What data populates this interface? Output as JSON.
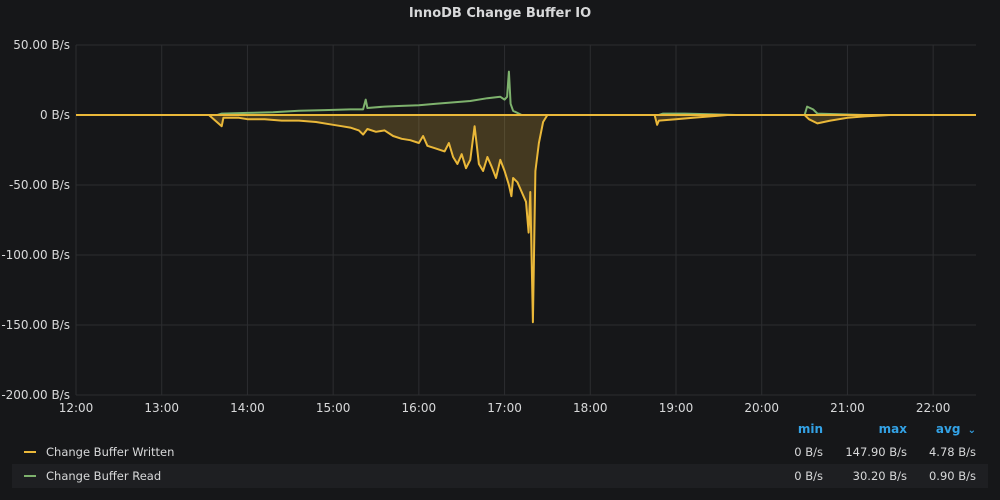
{
  "title": "InnoDB Change Buffer IO",
  "legend": {
    "headers": {
      "min": "min",
      "max": "max",
      "avg": "avg"
    },
    "sort_icon": "chevron-down-icon",
    "rows": [
      {
        "name": "Change Buffer Written",
        "color": "#eab839",
        "min": "0 B/s",
        "max": "147.90 B/s",
        "avg": "4.78 B/s"
      },
      {
        "name": "Change Buffer Read",
        "color": "#7eb26d",
        "min": "0 B/s",
        "max": "30.20 B/s",
        "avg": "0.90 B/s"
      }
    ]
  },
  "chart_data": {
    "type": "line",
    "title": "InnoDB Change Buffer IO",
    "x_ticks": [
      "12:00",
      "13:00",
      "14:00",
      "15:00",
      "16:00",
      "17:00",
      "18:00",
      "19:00",
      "20:00",
      "21:00",
      "22:00"
    ],
    "y_ticks": [
      "50.00 B/s",
      "0 B/s",
      "-50.00 B/s",
      "-100.00 B/s",
      "-150.00 B/s",
      "-200.00 B/s"
    ],
    "y_tick_values": [
      50,
      0,
      -50,
      -100,
      -150,
      -200
    ],
    "ylim": [
      -200,
      50
    ],
    "xlim_hours": [
      12,
      22.5
    ],
    "grid": true,
    "series": [
      {
        "name": "Change Buffer Written",
        "color": "#eab839",
        "fill": true,
        "points": [
          [
            12.0,
            0
          ],
          [
            13.55,
            0
          ],
          [
            13.7,
            -8
          ],
          [
            13.72,
            -2
          ],
          [
            13.9,
            -2
          ],
          [
            14.0,
            -3
          ],
          [
            14.2,
            -3
          ],
          [
            14.4,
            -4
          ],
          [
            14.6,
            -4
          ],
          [
            14.8,
            -5
          ],
          [
            15.0,
            -7
          ],
          [
            15.1,
            -8
          ],
          [
            15.2,
            -9
          ],
          [
            15.3,
            -11
          ],
          [
            15.35,
            -14
          ],
          [
            15.4,
            -10
          ],
          [
            15.5,
            -12
          ],
          [
            15.6,
            -11
          ],
          [
            15.7,
            -15
          ],
          [
            15.8,
            -17
          ],
          [
            15.9,
            -18
          ],
          [
            16.0,
            -20
          ],
          [
            16.05,
            -15
          ],
          [
            16.1,
            -22
          ],
          [
            16.2,
            -24
          ],
          [
            16.3,
            -26
          ],
          [
            16.35,
            -20
          ],
          [
            16.4,
            -30
          ],
          [
            16.45,
            -35
          ],
          [
            16.5,
            -28
          ],
          [
            16.55,
            -38
          ],
          [
            16.6,
            -32
          ],
          [
            16.65,
            -8
          ],
          [
            16.7,
            -35
          ],
          [
            16.75,
            -40
          ],
          [
            16.8,
            -30
          ],
          [
            16.85,
            -37
          ],
          [
            16.9,
            -45
          ],
          [
            16.95,
            -32
          ],
          [
            17.0,
            -40
          ],
          [
            17.05,
            -50
          ],
          [
            17.08,
            -58
          ],
          [
            17.1,
            -45
          ],
          [
            17.15,
            -48
          ],
          [
            17.2,
            -55
          ],
          [
            17.25,
            -62
          ],
          [
            17.28,
            -84
          ],
          [
            17.3,
            -55
          ],
          [
            17.33,
            -148
          ],
          [
            17.36,
            -40
          ],
          [
            17.4,
            -20
          ],
          [
            17.45,
            -5
          ],
          [
            17.5,
            0
          ],
          [
            18.75,
            0
          ],
          [
            18.78,
            -7
          ],
          [
            18.8,
            -4
          ],
          [
            19.0,
            -3
          ],
          [
            19.2,
            -2
          ],
          [
            19.4,
            -1
          ],
          [
            19.6,
            0
          ],
          [
            20.5,
            0
          ],
          [
            20.55,
            -3
          ],
          [
            20.65,
            -6
          ],
          [
            20.8,
            -4
          ],
          [
            21.0,
            -2
          ],
          [
            21.2,
            -1
          ],
          [
            21.5,
            0
          ],
          [
            22.5,
            0
          ]
        ]
      },
      {
        "name": "Change Buffer Read",
        "color": "#7eb26d",
        "fill": false,
        "points": [
          [
            12.0,
            0
          ],
          [
            13.65,
            0
          ],
          [
            13.7,
            1
          ],
          [
            14.0,
            1.5
          ],
          [
            14.3,
            2
          ],
          [
            14.6,
            3
          ],
          [
            14.9,
            3.5
          ],
          [
            15.2,
            4
          ],
          [
            15.35,
            4
          ],
          [
            15.38,
            11
          ],
          [
            15.4,
            5
          ],
          [
            15.6,
            6
          ],
          [
            15.8,
            6.5
          ],
          [
            16.0,
            7
          ],
          [
            16.2,
            8
          ],
          [
            16.4,
            9
          ],
          [
            16.6,
            10
          ],
          [
            16.8,
            12
          ],
          [
            16.95,
            13
          ],
          [
            17.0,
            11
          ],
          [
            17.03,
            13
          ],
          [
            17.05,
            31
          ],
          [
            17.07,
            8
          ],
          [
            17.1,
            3
          ],
          [
            17.2,
            0
          ],
          [
            18.8,
            0
          ],
          [
            18.85,
            1
          ],
          [
            19.1,
            1
          ],
          [
            19.4,
            0.5
          ],
          [
            19.7,
            0
          ],
          [
            20.5,
            0
          ],
          [
            20.53,
            6
          ],
          [
            20.6,
            4
          ],
          [
            20.65,
            1
          ],
          [
            20.9,
            0.5
          ],
          [
            21.2,
            0
          ],
          [
            22.5,
            0
          ]
        ]
      }
    ]
  }
}
